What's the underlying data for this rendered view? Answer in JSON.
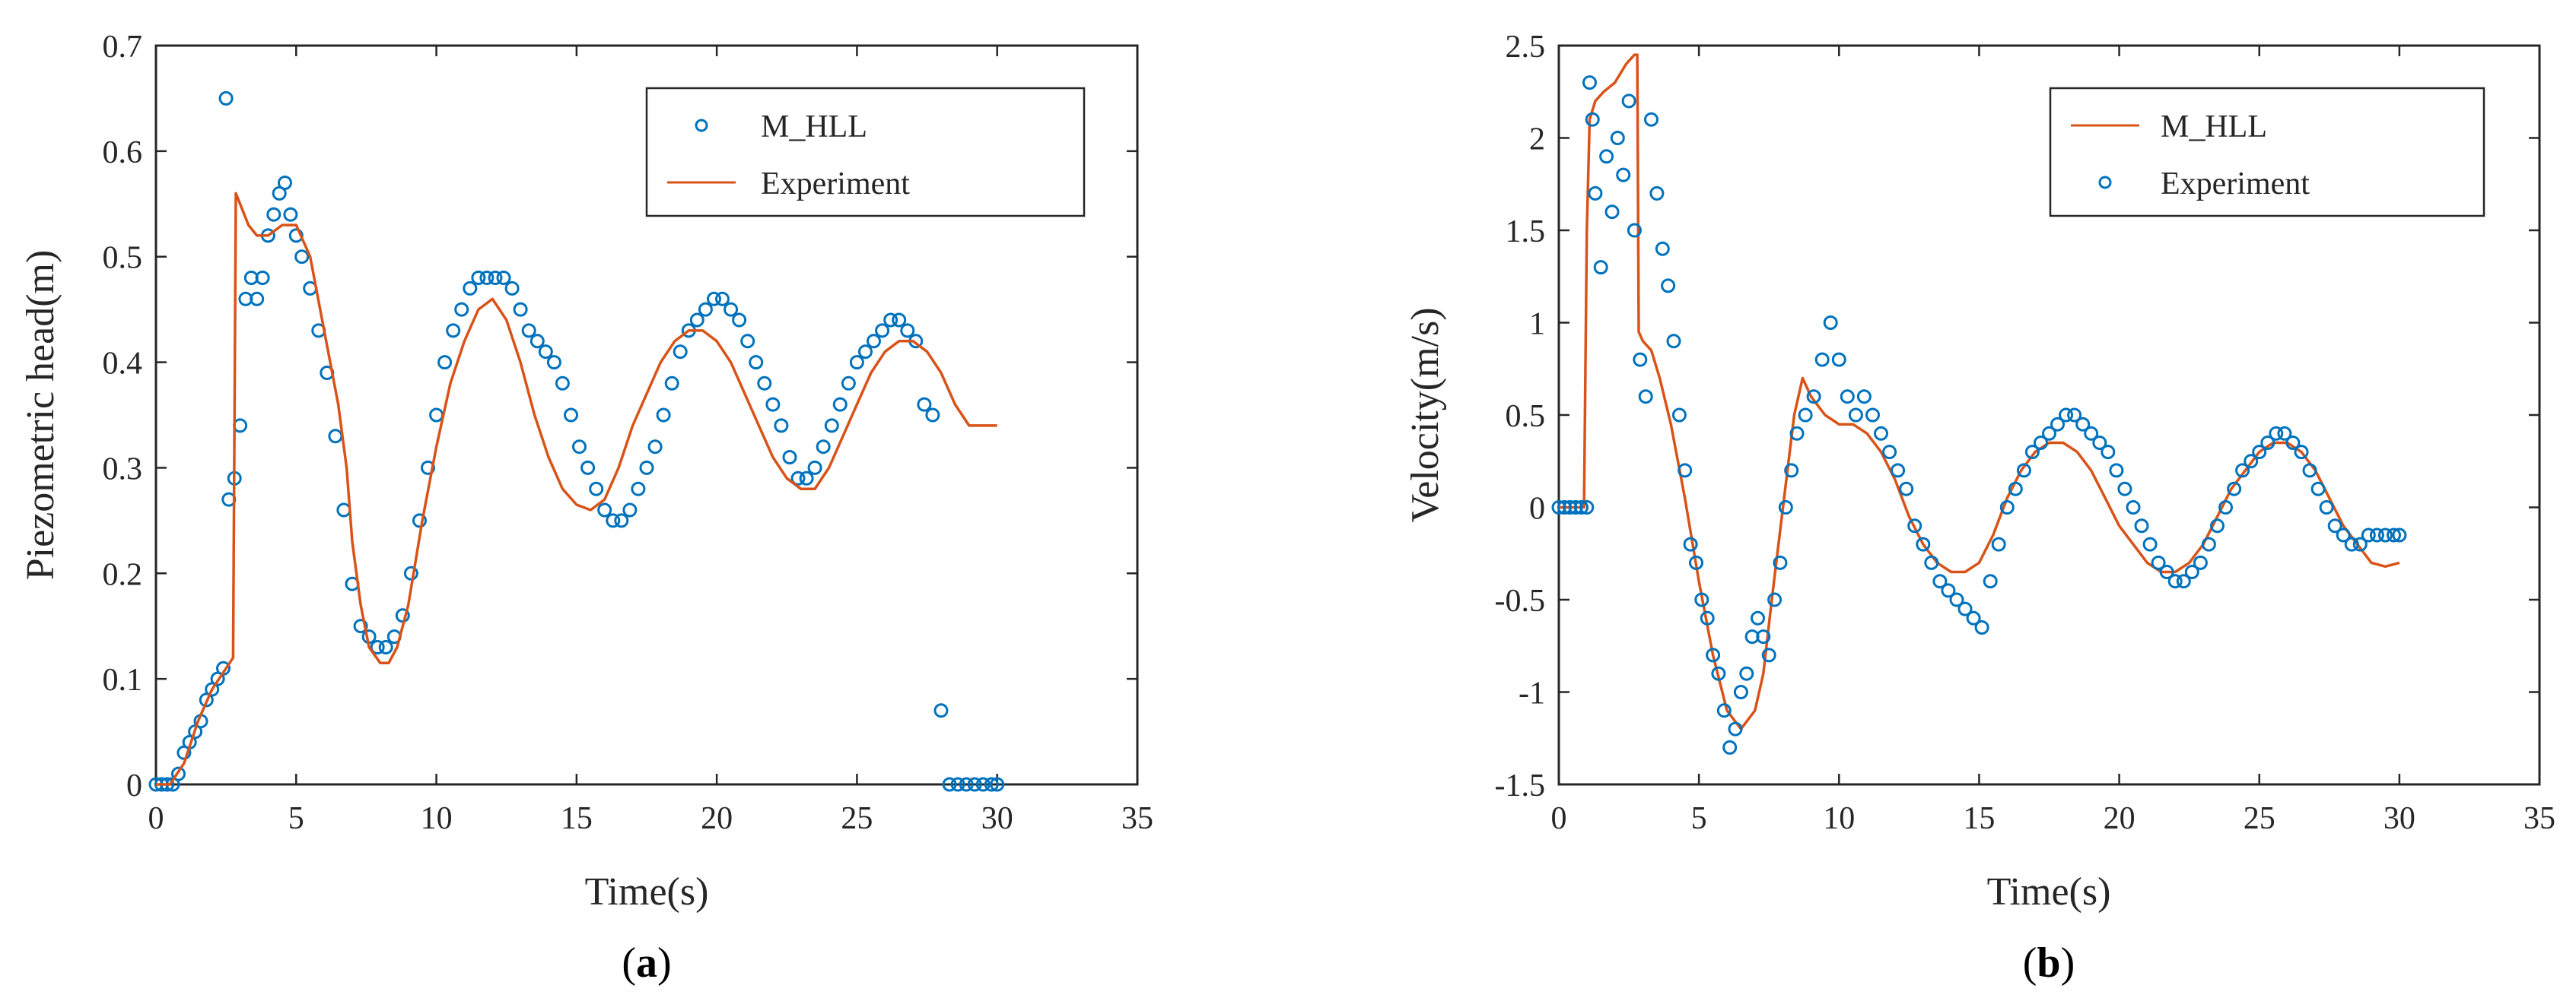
{
  "colors": {
    "model": "#0072BD",
    "experiment": "#D95319",
    "axis": "#262626"
  },
  "panels": [
    {
      "tag_open": "(",
      "tag_letter": "a",
      "tag_close": ")"
    },
    {
      "tag_open": "(",
      "tag_letter": "b",
      "tag_close": ")"
    }
  ],
  "chart_data": [
    {
      "type": "line",
      "title": "",
      "xlabel": "Time(s)",
      "ylabel": "Piezometric head(m)",
      "xlim": [
        0,
        35
      ],
      "ylim": [
        0,
        0.7
      ],
      "xticks": [
        0,
        5,
        10,
        15,
        20,
        25,
        30,
        35
      ],
      "yticks": [
        0,
        0.1,
        0.2,
        0.3,
        0.4,
        0.5,
        0.6,
        0.7
      ],
      "xtick_labels": [
        "0",
        "5",
        "10",
        "15",
        "20",
        "25",
        "30",
        "35"
      ],
      "ytick_labels": [
        "0",
        "0.1",
        "0.2",
        "0.3",
        "0.4",
        "0.5",
        "0.6",
        "0.7"
      ],
      "grid": false,
      "legend_position": "top-right",
      "legend": [
        {
          "label": "M_HLL",
          "marker": "circle"
        },
        {
          "label": "Experiment",
          "marker": "line"
        }
      ],
      "series": [
        {
          "name": "M_HLL",
          "style": "scatter",
          "x": [
            0.0,
            0.2,
            0.4,
            0.6,
            0.8,
            1.0,
            1.2,
            1.4,
            1.6,
            1.8,
            2.0,
            2.2,
            2.4,
            2.5,
            2.6,
            2.8,
            3.0,
            3.2,
            3.4,
            3.6,
            3.8,
            4.0,
            4.2,
            4.4,
            4.6,
            4.8,
            5.0,
            5.2,
            5.5,
            5.8,
            6.1,
            6.4,
            6.7,
            7.0,
            7.3,
            7.6,
            7.9,
            8.2,
            8.5,
            8.8,
            9.1,
            9.4,
            9.7,
            10.0,
            10.3,
            10.6,
            10.9,
            11.2,
            11.5,
            11.8,
            12.1,
            12.4,
            12.7,
            13.0,
            13.3,
            13.6,
            13.9,
            14.2,
            14.5,
            14.8,
            15.1,
            15.4,
            15.7,
            16.0,
            16.3,
            16.6,
            16.9,
            17.2,
            17.5,
            17.8,
            18.1,
            18.4,
            18.7,
            19.0,
            19.3,
            19.6,
            19.9,
            20.2,
            20.5,
            20.8,
            21.1,
            21.4,
            21.7,
            22.0,
            22.3,
            22.6,
            22.9,
            23.2,
            23.5,
            23.8,
            24.1,
            24.4,
            24.7,
            25.0,
            25.3,
            25.6,
            25.9,
            26.2,
            26.5,
            26.8,
            27.1,
            27.4,
            27.7,
            28.0,
            28.3,
            28.6,
            28.9,
            29.2,
            29.5,
            29.8,
            30.0
          ],
          "y": [
            0.0,
            0.0,
            0.0,
            0.0,
            0.01,
            0.03,
            0.04,
            0.05,
            0.06,
            0.08,
            0.09,
            0.1,
            0.11,
            0.65,
            0.27,
            0.29,
            0.34,
            0.46,
            0.48,
            0.46,
            0.48,
            0.52,
            0.54,
            0.56,
            0.57,
            0.54,
            0.52,
            0.5,
            0.47,
            0.43,
            0.39,
            0.33,
            0.26,
            0.19,
            0.15,
            0.14,
            0.13,
            0.13,
            0.14,
            0.16,
            0.2,
            0.25,
            0.3,
            0.35,
            0.4,
            0.43,
            0.45,
            0.47,
            0.48,
            0.48,
            0.48,
            0.48,
            0.47,
            0.45,
            0.43,
            0.42,
            0.41,
            0.4,
            0.38,
            0.35,
            0.32,
            0.3,
            0.28,
            0.26,
            0.25,
            0.25,
            0.26,
            0.28,
            0.3,
            0.32,
            0.35,
            0.38,
            0.41,
            0.43,
            0.44,
            0.45,
            0.46,
            0.46,
            0.45,
            0.44,
            0.42,
            0.4,
            0.38,
            0.36,
            0.34,
            0.31,
            0.29,
            0.29,
            0.3,
            0.32,
            0.34,
            0.36,
            0.38,
            0.4,
            0.41,
            0.42,
            0.43,
            0.44,
            0.44,
            0.43,
            0.42,
            0.36,
            0.35,
            0.07,
            0.0,
            0.0,
            0.0,
            0.0,
            0.0,
            0.0,
            0.0
          ],
          "y_note_ignore": []
        },
        {
          "name": "Experiment",
          "style": "line",
          "x": [
            0.0,
            0.5,
            1.0,
            1.5,
            2.0,
            2.5,
            2.75,
            2.85,
            3.0,
            3.3,
            3.6,
            4.0,
            4.5,
            5.0,
            5.5,
            6.0,
            6.5,
            6.8,
            7.0,
            7.3,
            7.6,
            8.0,
            8.3,
            8.6,
            9.0,
            9.5,
            10.0,
            10.5,
            11.0,
            11.5,
            12.0,
            12.5,
            13.0,
            13.5,
            14.0,
            14.5,
            15.0,
            15.5,
            16.0,
            16.5,
            17.0,
            17.5,
            18.0,
            18.5,
            19.0,
            19.5,
            20.0,
            20.5,
            21.0,
            21.5,
            22.0,
            22.5,
            23.0,
            23.5,
            24.0,
            24.5,
            25.0,
            25.5,
            26.0,
            26.5,
            27.0,
            27.5,
            28.0,
            28.5,
            29.0,
            29.5,
            30.0
          ],
          "y": [
            0.0,
            0.0,
            0.02,
            0.06,
            0.09,
            0.11,
            0.12,
            0.56,
            0.55,
            0.53,
            0.52,
            0.52,
            0.53,
            0.53,
            0.5,
            0.43,
            0.36,
            0.3,
            0.23,
            0.17,
            0.13,
            0.115,
            0.115,
            0.13,
            0.17,
            0.25,
            0.32,
            0.38,
            0.42,
            0.45,
            0.46,
            0.44,
            0.4,
            0.35,
            0.31,
            0.28,
            0.265,
            0.26,
            0.27,
            0.3,
            0.34,
            0.37,
            0.4,
            0.42,
            0.43,
            0.43,
            0.42,
            0.4,
            0.37,
            0.34,
            0.31,
            0.29,
            0.28,
            0.28,
            0.3,
            0.33,
            0.36,
            0.39,
            0.41,
            0.42,
            0.42,
            0.41,
            0.39,
            0.36,
            0.34,
            0.34,
            0.34
          ]
        }
      ]
    },
    {
      "type": "line",
      "title": "",
      "xlabel": "Time(s)",
      "ylabel": "Velocity(m/s)",
      "xlim": [
        0,
        35
      ],
      "ylim": [
        -1.5,
        2.5
      ],
      "xticks": [
        0,
        5,
        10,
        15,
        20,
        25,
        30,
        35
      ],
      "yticks": [
        -1.5,
        -1,
        -0.5,
        0,
        0.5,
        1,
        1.5,
        2,
        2.5
      ],
      "xtick_labels": [
        "0",
        "5",
        "10",
        "15",
        "20",
        "25",
        "30",
        "35"
      ],
      "ytick_labels": [
        "-1.5",
        "-1",
        "-0.5",
        "0",
        "0.5",
        "1",
        "1.5",
        "2",
        "2.5"
      ],
      "grid": false,
      "legend_position": "top-right",
      "legend": [
        {
          "label": "M_HLL",
          "marker": "line"
        },
        {
          "label": "Experiment",
          "marker": "circle"
        }
      ],
      "series": [
        {
          "name": "M_HLL",
          "style": "line",
          "x": [
            0.0,
            0.5,
            0.9,
            1.0,
            1.1,
            1.3,
            1.6,
            2.0,
            2.4,
            2.7,
            2.8,
            2.85,
            3.0,
            3.3,
            3.6,
            4.0,
            4.5,
            5.0,
            5.5,
            6.0,
            6.5,
            7.0,
            7.3,
            7.6,
            8.0,
            8.4,
            8.7,
            9.0,
            9.5,
            10.0,
            10.5,
            11.0,
            11.5,
            12.0,
            12.5,
            13.0,
            13.5,
            14.0,
            14.5,
            15.0,
            15.5,
            16.0,
            16.5,
            17.0,
            17.5,
            18.0,
            18.5,
            19.0,
            19.5,
            20.0,
            20.5,
            21.0,
            21.5,
            22.0,
            22.5,
            23.0,
            23.5,
            24.0,
            24.5,
            25.0,
            25.5,
            26.0,
            26.5,
            27.0,
            27.5,
            28.0,
            28.5,
            29.0,
            29.5,
            30.0
          ],
          "y": [
            0.0,
            0.0,
            0.0,
            1.5,
            2.1,
            2.2,
            2.25,
            2.3,
            2.4,
            2.45,
            2.45,
            0.95,
            0.9,
            0.85,
            0.7,
            0.45,
            0.05,
            -0.4,
            -0.8,
            -1.1,
            -1.2,
            -1.1,
            -0.9,
            -0.5,
            0.0,
            0.5,
            0.7,
            0.6,
            0.5,
            0.45,
            0.45,
            0.4,
            0.3,
            0.15,
            -0.05,
            -0.2,
            -0.3,
            -0.35,
            -0.35,
            -0.3,
            -0.15,
            0.05,
            0.2,
            0.3,
            0.35,
            0.35,
            0.3,
            0.2,
            0.05,
            -0.1,
            -0.2,
            -0.3,
            -0.35,
            -0.35,
            -0.3,
            -0.2,
            -0.05,
            0.1,
            0.2,
            0.3,
            0.35,
            0.35,
            0.3,
            0.2,
            0.05,
            -0.1,
            -0.2,
            -0.3,
            -0.32,
            -0.3
          ],
          "y_note_ignore": []
        },
        {
          "name": "Experiment",
          "style": "scatter",
          "x": [
            0.0,
            0.2,
            0.4,
            0.6,
            0.8,
            1.0,
            1.1,
            1.2,
            1.3,
            1.5,
            1.7,
            1.9,
            2.1,
            2.3,
            2.5,
            2.7,
            2.9,
            3.1,
            3.3,
            3.5,
            3.7,
            3.9,
            4.1,
            4.3,
            4.5,
            4.7,
            4.9,
            5.1,
            5.3,
            5.5,
            5.7,
            5.9,
            6.1,
            6.3,
            6.5,
            6.7,
            6.9,
            7.1,
            7.3,
            7.5,
            7.7,
            7.9,
            8.1,
            8.3,
            8.5,
            8.8,
            9.1,
            9.4,
            9.7,
            10.0,
            10.3,
            10.6,
            10.9,
            11.2,
            11.5,
            11.8,
            12.1,
            12.4,
            12.7,
            13.0,
            13.3,
            13.6,
            13.9,
            14.2,
            14.5,
            14.8,
            15.1,
            15.4,
            15.7,
            16.0,
            16.3,
            16.6,
            16.9,
            17.2,
            17.5,
            17.8,
            18.1,
            18.4,
            18.7,
            19.0,
            19.3,
            19.6,
            19.9,
            20.2,
            20.5,
            20.8,
            21.1,
            21.4,
            21.7,
            22.0,
            22.3,
            22.6,
            22.9,
            23.2,
            23.5,
            23.8,
            24.1,
            24.4,
            24.7,
            25.0,
            25.3,
            25.6,
            25.9,
            26.2,
            26.5,
            26.8,
            27.1,
            27.4,
            27.7,
            28.0,
            28.3,
            28.6,
            28.9,
            29.2,
            29.5,
            29.8,
            30.0
          ],
          "y": [
            0.0,
            0.0,
            0.0,
            0.0,
            0.0,
            0.0,
            2.3,
            2.1,
            1.7,
            1.3,
            1.9,
            1.6,
            2.0,
            1.8,
            2.2,
            1.5,
            0.8,
            0.6,
            2.1,
            1.7,
            1.4,
            1.2,
            0.9,
            0.5,
            0.2,
            -0.2,
            -0.3,
            -0.5,
            -0.6,
            -0.8,
            -0.9,
            -1.1,
            -1.3,
            -1.2,
            -1.0,
            -0.9,
            -0.7,
            -0.6,
            -0.7,
            -0.8,
            -0.5,
            -0.3,
            0.0,
            0.2,
            0.4,
            0.5,
            0.6,
            0.8,
            1.0,
            0.8,
            0.6,
            0.5,
            0.6,
            0.5,
            0.4,
            0.3,
            0.2,
            0.1,
            -0.1,
            -0.2,
            -0.3,
            -0.4,
            -0.45,
            -0.5,
            -0.55,
            -0.6,
            -0.65,
            -0.4,
            -0.2,
            0.0,
            0.1,
            0.2,
            0.3,
            0.35,
            0.4,
            0.45,
            0.5,
            0.5,
            0.45,
            0.4,
            0.35,
            0.3,
            0.2,
            0.1,
            0.0,
            -0.1,
            -0.2,
            -0.3,
            -0.35,
            -0.4,
            -0.4,
            -0.35,
            -0.3,
            -0.2,
            -0.1,
            0.0,
            0.1,
            0.2,
            0.25,
            0.3,
            0.35,
            0.4,
            0.4,
            0.35,
            0.3,
            0.2,
            0.1,
            0.0,
            -0.1,
            -0.15,
            -0.2,
            -0.2,
            -0.15,
            -0.15,
            -0.15,
            -0.15,
            -0.15
          ]
        }
      ]
    }
  ]
}
